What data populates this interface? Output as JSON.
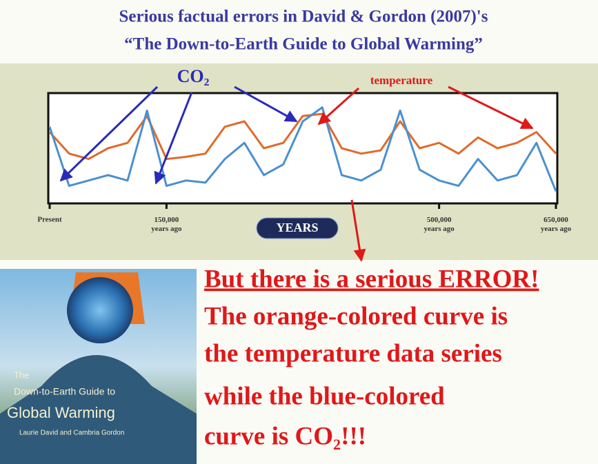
{
  "title": [
    "Serious factual errors in David & Gordon (2007)'s",
    "“The Down-to-Earth Guide to Global Warming”"
  ],
  "chart_data": {
    "type": "line",
    "annotations": [
      "CO₂",
      "temperature"
    ],
    "x_label": "YEARS",
    "x": [
      0,
      25000,
      50000,
      75000,
      100000,
      125000,
      150000,
      175000,
      200000,
      225000,
      250000,
      275000,
      300000,
      325000,
      350000,
      375000,
      400000,
      425000,
      450000,
      475000,
      500000,
      525000,
      550000,
      575000,
      600000,
      625000,
      650000
    ],
    "xlim": [
      0,
      650000
    ],
    "xticks": [
      {
        "value": 0,
        "label": "Present"
      },
      {
        "value": 150000,
        "label": "150,000 years ago"
      },
      {
        "value": 500000,
        "label": "500,000 years ago"
      },
      {
        "value": 650000,
        "label": "650,000 years ago"
      }
    ],
    "ylim": [
      0,
      100
    ],
    "series": [
      {
        "name": "temperature",
        "color": "#e06a2a",
        "values": [
          65,
          45,
          40,
          50,
          55,
          80,
          40,
          42,
          45,
          70,
          75,
          50,
          55,
          80,
          82,
          50,
          45,
          48,
          75,
          50,
          55,
          45,
          60,
          50,
          55,
          65,
          45
        ]
      },
      {
        "name": "CO₂",
        "color": "#4a90d0",
        "values": [
          70,
          15,
          20,
          25,
          20,
          85,
          15,
          20,
          18,
          40,
          55,
          25,
          35,
          75,
          88,
          25,
          20,
          30,
          85,
          30,
          20,
          15,
          40,
          20,
          25,
          55,
          10
        ]
      }
    ]
  },
  "book": [
    "The",
    "Down-to-Earth Guide to",
    "Global Warming",
    "Laurie David and Cambria Gordon"
  ],
  "message": [
    "But there is a serious ERROR!",
    "The orange-colored curve is",
    "the temperature data series",
    "while the blue-colored",
    "curve is CO₂!!!"
  ]
}
